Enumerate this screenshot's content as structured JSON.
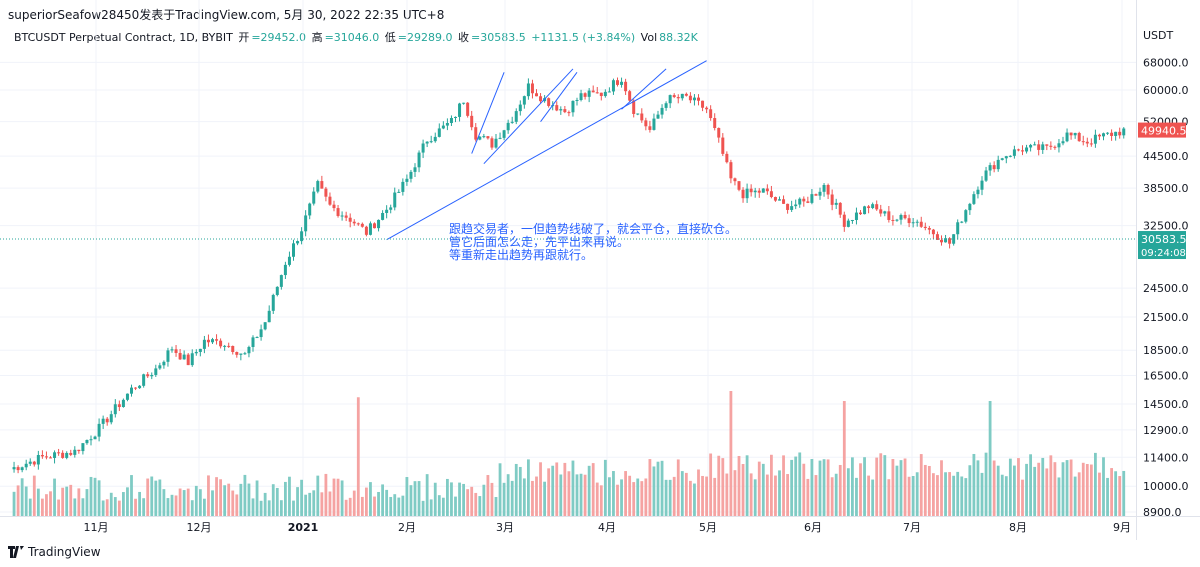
{
  "header": {
    "title_line": "superiorSeafow28450发表于TradingView.com,  5月 30, 2022 22:35 UTC+8"
  },
  "legend": {
    "symbol": "BTCUSDT Perpetual Contract, 1D, BYBIT",
    "open_label": "开",
    "open": "=29452.0",
    "high_label": "高",
    "high": "=31046.0",
    "low_label": "低",
    "low": "=29289.0",
    "close_label": "收",
    "close": "=30583.5",
    "change": "+1131.5 (+3.84%)",
    "vol_label": "Vol",
    "vol": "88.32K"
  },
  "price_axis_currency": "USDT",
  "annotation": {
    "line1": "跟趋交易者，一但趋势线破了，就会平仓，直接砍仓。",
    "line2": "管它后面怎么走，先平出来再说。",
    "line3": "等重新走出趋势再跟就行。"
  },
  "badges": {
    "last_price": "49940.5",
    "current_price": "30583.5",
    "countdown": "09:24:08"
  },
  "colors": {
    "up": "#26a69a",
    "down": "#ef5350",
    "trendline": "#2962ff",
    "up_volume": "#7fcbc4",
    "down_volume": "#f5a3a2"
  },
  "footer": {
    "brand": "TradingView",
    "icon": "tradingview-logo-icon"
  },
  "chart_data": {
    "type": "candlestick",
    "price_scale": "log",
    "y_ticks": [
      8900,
      10000,
      11400,
      12900,
      14500,
      16500,
      18500,
      21500,
      24500,
      32500,
      38500,
      44500,
      52000,
      60000,
      68000
    ],
    "x_ticks": [
      "11月",
      "12月",
      "2021",
      "2月",
      "3月",
      "4月",
      "5月",
      "6月",
      "7月",
      "8月",
      "9月"
    ],
    "grid": true,
    "anchors": [
      {
        "d": 0,
        "p": 10800
      },
      {
        "d": 8,
        "p": 11400
      },
      {
        "d": 16,
        "p": 11700
      },
      {
        "d": 22,
        "p": 13000
      },
      {
        "d": 30,
        "p": 15500
      },
      {
        "d": 36,
        "p": 17000
      },
      {
        "d": 40,
        "p": 18700
      },
      {
        "d": 44,
        "p": 17500
      },
      {
        "d": 48,
        "p": 19300
      },
      {
        "d": 53,
        "p": 19100
      },
      {
        "d": 58,
        "p": 18100
      },
      {
        "d": 63,
        "p": 21000
      },
      {
        "d": 68,
        "p": 27500
      },
      {
        "d": 72,
        "p": 32000
      },
      {
        "d": 76,
        "p": 39000
      },
      {
        "d": 79,
        "p": 35500
      },
      {
        "d": 84,
        "p": 33500
      },
      {
        "d": 88,
        "p": 31500
      },
      {
        "d": 93,
        "p": 35000
      },
      {
        "d": 98,
        "p": 40000
      },
      {
        "d": 103,
        "p": 48000
      },
      {
        "d": 109,
        "p": 52000
      },
      {
        "d": 112,
        "p": 57500
      },
      {
        "d": 115,
        "p": 49000
      },
      {
        "d": 119,
        "p": 47000
      },
      {
        "d": 124,
        "p": 53000
      },
      {
        "d": 128,
        "p": 61000
      },
      {
        "d": 132,
        "p": 57500
      },
      {
        "d": 137,
        "p": 54500
      },
      {
        "d": 141,
        "p": 58500
      },
      {
        "d": 146,
        "p": 59000
      },
      {
        "d": 151,
        "p": 63500
      },
      {
        "d": 154,
        "p": 55000
      },
      {
        "d": 158,
        "p": 50000
      },
      {
        "d": 162,
        "p": 57500
      },
      {
        "d": 167,
        "p": 58000
      },
      {
        "d": 172,
        "p": 55000
      },
      {
        "d": 175,
        "p": 47500
      },
      {
        "d": 178,
        "p": 40000
      },
      {
        "d": 181,
        "p": 37500
      },
      {
        "d": 186,
        "p": 38000
      },
      {
        "d": 191,
        "p": 35500
      },
      {
        "d": 196,
        "p": 36000
      },
      {
        "d": 201,
        "p": 39000
      },
      {
        "d": 206,
        "p": 33000
      },
      {
        "d": 212,
        "p": 35500
      },
      {
        "d": 218,
        "p": 33500
      },
      {
        "d": 223,
        "p": 33500
      },
      {
        "d": 228,
        "p": 31500
      },
      {
        "d": 232,
        "p": 30000
      },
      {
        "d": 236,
        "p": 35000
      },
      {
        "d": 240,
        "p": 40500
      },
      {
        "d": 245,
        "p": 44500
      },
      {
        "d": 250,
        "p": 46000
      },
      {
        "d": 256,
        "p": 46000
      },
      {
        "d": 261,
        "p": 49000
      },
      {
        "d": 266,
        "p": 47500
      },
      {
        "d": 271,
        "p": 49000
      },
      {
        "d": 275,
        "p": 49940
      }
    ],
    "volume_spikes": [
      {
        "d": 86,
        "v": 0.95
      },
      {
        "d": 178,
        "v": 1.0
      },
      {
        "d": 206,
        "v": 0.92
      },
      {
        "d": 242,
        "v": 0.92
      }
    ],
    "trendlines": [
      {
        "from": [
          93,
          30500
        ],
        "to": [
          172,
          68500
        ]
      },
      {
        "from": [
          114,
          45000
        ],
        "to": [
          122,
          65000
        ]
      },
      {
        "from": [
          117,
          43000
        ],
        "to": [
          139,
          66000
        ]
      },
      {
        "from": [
          131,
          52000
        ],
        "to": [
          140,
          65000
        ]
      },
      {
        "from": [
          151,
          55000
        ],
        "to": [
          162,
          66000
        ]
      }
    ]
  }
}
